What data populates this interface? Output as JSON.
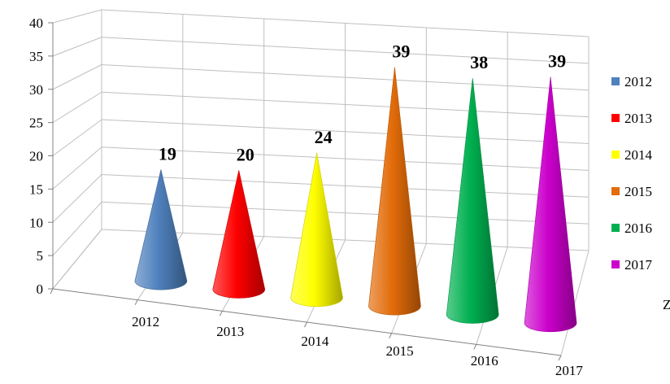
{
  "chart_data": {
    "type": "bar",
    "bar_shape": "cone",
    "three_d": true,
    "categories": [
      "2012",
      "2013",
      "2014",
      "2015",
      "2016",
      "2017"
    ],
    "values": [
      19,
      20,
      24,
      39,
      38,
      39
    ],
    "data_labels": [
      "19",
      "20",
      "24",
      "39",
      "38",
      "39"
    ],
    "series": [
      {
        "name": "2012",
        "value": 19,
        "color": "#4f81bd"
      },
      {
        "name": "2013",
        "value": 20,
        "color": "#ff0000"
      },
      {
        "name": "2014",
        "value": 24,
        "color": "#ffff00"
      },
      {
        "name": "2015",
        "value": 39,
        "color": "#e36c09"
      },
      {
        "name": "2016",
        "value": 38,
        "color": "#00b050"
      },
      {
        "name": "2017",
        "value": 39,
        "color": "#cc00cc"
      }
    ],
    "y_ticks": [
      "0",
      "5",
      "10",
      "15",
      "20",
      "25",
      "30",
      "35",
      "40"
    ],
    "ylim": [
      0,
      40
    ],
    "grid": true,
    "legend_position": "right",
    "title": "",
    "xlabel": "",
    "ylabel": ""
  },
  "edge_text": "Z"
}
